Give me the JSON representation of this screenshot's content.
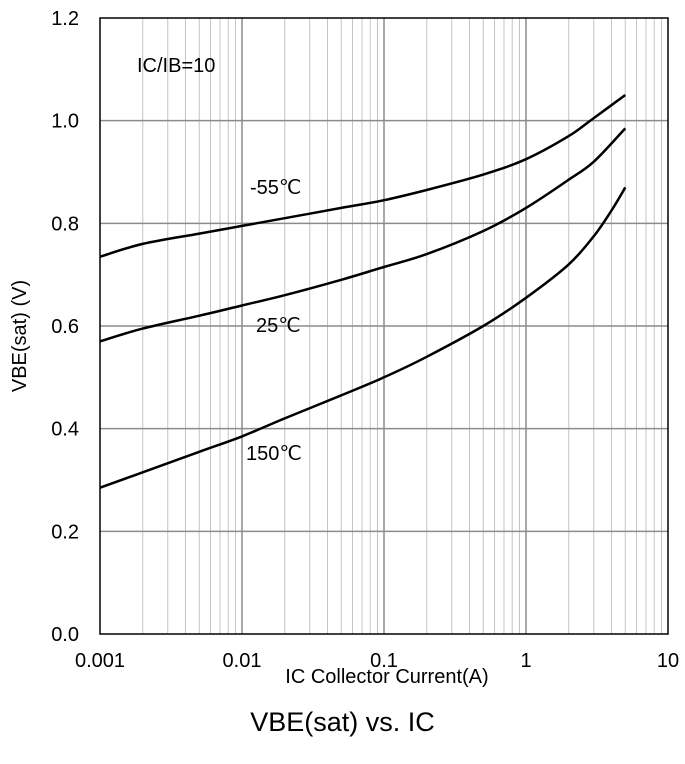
{
  "chart_data": {
    "type": "line",
    "title": "VBE(sat) vs. IC",
    "xlabel": "IC Collector Current(A)",
    "ylabel": "VBE(sat) (V)",
    "xscale": "log",
    "xlim": [
      0.001,
      10
    ],
    "ylim": [
      0,
      1.2
    ],
    "xticks": [
      "0.001",
      "0.01",
      "0.1",
      "1",
      "10"
    ],
    "yticks": [
      "0.0",
      "0.2",
      "0.4",
      "0.6",
      "0.8",
      "1.0",
      "1.2"
    ],
    "grid": true,
    "annotations": [
      "IC/IB=10"
    ],
    "series": [
      {
        "name": "-55℃",
        "x": [
          0.001,
          0.002,
          0.005,
          0.01,
          0.02,
          0.05,
          0.1,
          0.2,
          0.5,
          1,
          2,
          3,
          5
        ],
        "y": [
          0.735,
          0.76,
          0.78,
          0.795,
          0.81,
          0.83,
          0.845,
          0.865,
          0.895,
          0.925,
          0.97,
          1.005,
          1.05
        ]
      },
      {
        "name": "25℃",
        "x": [
          0.001,
          0.002,
          0.005,
          0.01,
          0.02,
          0.05,
          0.1,
          0.2,
          0.5,
          1,
          2,
          3,
          5
        ],
        "y": [
          0.57,
          0.595,
          0.62,
          0.64,
          0.66,
          0.69,
          0.715,
          0.74,
          0.785,
          0.83,
          0.885,
          0.92,
          0.985
        ]
      },
      {
        "name": "150℃",
        "x": [
          0.001,
          0.002,
          0.005,
          0.01,
          0.02,
          0.05,
          0.1,
          0.2,
          0.5,
          1,
          2,
          3,
          4,
          5
        ],
        "y": [
          0.285,
          0.315,
          0.355,
          0.385,
          0.42,
          0.465,
          0.5,
          0.54,
          0.6,
          0.655,
          0.72,
          0.775,
          0.825,
          0.87
        ]
      }
    ]
  }
}
